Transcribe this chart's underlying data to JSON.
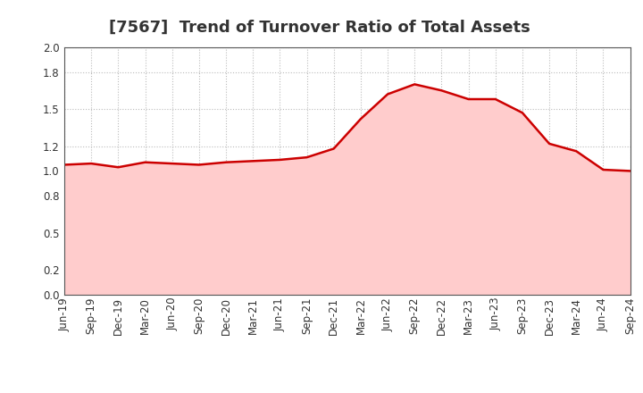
{
  "title": "[7567]  Trend of Turnover Ratio of Total Assets",
  "x_labels": [
    "Jun-19",
    "Sep-19",
    "Dec-19",
    "Mar-20",
    "Jun-20",
    "Sep-20",
    "Dec-20",
    "Mar-21",
    "Jun-21",
    "Sep-21",
    "Dec-21",
    "Mar-22",
    "Jun-22",
    "Sep-22",
    "Dec-22",
    "Mar-23",
    "Jun-23",
    "Sep-23",
    "Dec-23",
    "Mar-24",
    "Jun-24",
    "Sep-24"
  ],
  "y_values": [
    1.05,
    1.06,
    1.03,
    1.07,
    1.06,
    1.05,
    1.07,
    1.08,
    1.09,
    1.11,
    1.18,
    1.42,
    1.62,
    1.7,
    1.65,
    1.58,
    1.58,
    1.47,
    1.22,
    1.16,
    1.01,
    1.0
  ],
  "ylim": [
    0.0,
    2.0
  ],
  "yticks": [
    0.0,
    0.2,
    0.5,
    0.8,
    1.0,
    1.2,
    1.5,
    1.8,
    2.0
  ],
  "line_color": "#CC0000",
  "fill_color": "#FFCCCC",
  "grid_color": "#BBBBBB",
  "background_color": "#FFFFFF",
  "title_fontsize": 13,
  "tick_fontsize": 8.5,
  "title_color": "#333333"
}
